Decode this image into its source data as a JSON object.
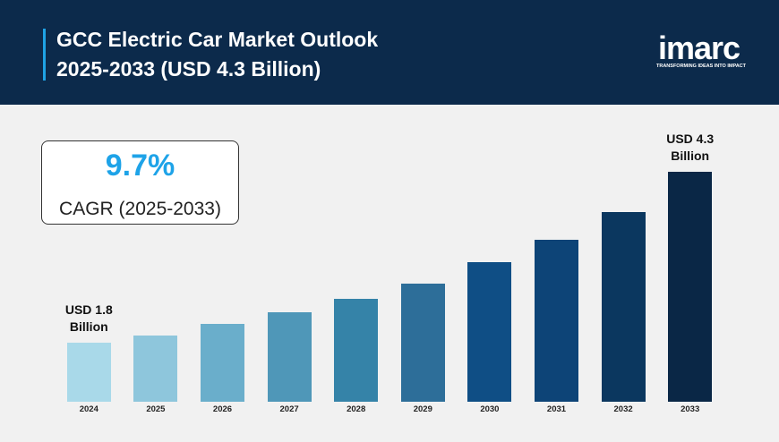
{
  "header": {
    "title": "GCC Electric Car Market Outlook 2025-2033 (USD 4.3 Billion)",
    "logo": "imarc",
    "tagline": "TRANSFORMING IDEAS INTO IMPACT"
  },
  "cagr": {
    "value": "9.7%",
    "label": "CAGR (2025-2033)"
  },
  "chart_data": {
    "type": "bar",
    "categories": [
      "2024",
      "2025",
      "2026",
      "2027",
      "2028",
      "2029",
      "2030",
      "2031",
      "2032",
      "2033"
    ],
    "values": [
      1.8,
      1.91,
      2.08,
      2.25,
      2.45,
      2.67,
      2.98,
      3.31,
      3.71,
      4.3
    ],
    "value_labels": [
      "USD 1.8 Billion",
      null,
      null,
      null,
      null,
      null,
      null,
      null,
      null,
      "USD 4.3 Billion"
    ],
    "colors": [
      "#a9d9e9",
      "#8ec6dc",
      "#6aaecb",
      "#4f97b8",
      "#3583a8",
      "#2d6e99",
      "#0f4e85",
      "#0d4477",
      "#0b375f",
      "#0a2746"
    ],
    "ylim": [
      0.94,
      4.3
    ]
  }
}
